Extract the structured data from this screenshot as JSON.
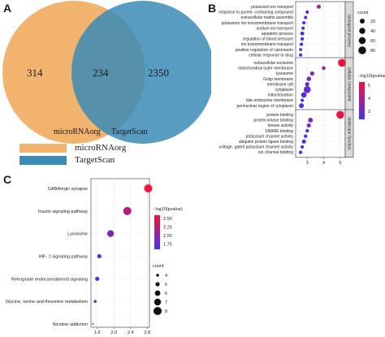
{
  "panels": {
    "a": "A",
    "b": "B",
    "c": "C"
  },
  "venn": {
    "left_only": "314",
    "overlap": "234",
    "right_only": "2350",
    "left_label": "microRNAorg",
    "right_label": "TargetScan",
    "colors": {
      "left": "#f2b36f",
      "right": "#3b8bb7"
    },
    "legend": [
      {
        "label": "microRNAorg",
        "color": "#f2b36f"
      },
      {
        "label": "TargetScan",
        "color": "#3b8bb7"
      }
    ]
  },
  "chart_data": [
    {
      "type": "scatter",
      "panel": "B",
      "xticks": [
        3,
        4,
        5
      ],
      "xlim": [
        2.3,
        5.3
      ],
      "color_legend_title": "- log10(pvalue)",
      "color_ticks": [
        "5",
        "4",
        "3"
      ],
      "size_legend_title": "count",
      "size_ticks": [
        "20",
        "40",
        "60",
        "80"
      ],
      "groups": [
        {
          "name": "biological process",
          "terms": [
            {
              "label": "potassium ion transport",
              "x": 3.7,
              "count": 10
            },
            {
              "label": "response to purine- containing compound",
              "x": 3.0,
              "count": 5
            },
            {
              "label": "extracellular matrix assembly",
              "x": 2.9,
              "count": 4
            },
            {
              "label": "potassium ion transmembrane transport",
              "x": 2.8,
              "count": 5
            },
            {
              "label": "sodium ion transport",
              "x": 2.75,
              "count": 5
            },
            {
              "label": "apoptotic process",
              "x": 2.7,
              "count": 10
            },
            {
              "label": "regulation of blood pressure",
              "x": 2.7,
              "count": 6
            },
            {
              "label": "ion transmembrane transport",
              "x": 2.65,
              "count": 6
            },
            {
              "label": "positive regulation of calcineurin",
              "x": 2.6,
              "count": 3
            },
            {
              "label": "cellular response to drug",
              "x": 2.6,
              "count": 5
            }
          ]
        },
        {
          "name": "cellular component",
          "terms": [
            {
              "label": "extracellular exosome",
              "x": 5.1,
              "count": 80
            },
            {
              "label": "mitochondrial outer membrane",
              "x": 4.0,
              "count": 8
            },
            {
              "label": "lysosome",
              "x": 3.3,
              "count": 12
            },
            {
              "label": "Golgi membrane",
              "x": 3.1,
              "count": 15
            },
            {
              "label": "membrane raft",
              "x": 3.0,
              "count": 12
            },
            {
              "label": "cytoplasm",
              "x": 3.0,
              "count": 60
            },
            {
              "label": "mitochondrion",
              "x": 2.8,
              "count": 30
            },
            {
              "label": "late endosome membrane",
              "x": 2.7,
              "count": 5
            },
            {
              "label": "perinuclear region of cytoplasm",
              "x": 2.65,
              "count": 20
            }
          ]
        },
        {
          "name": "molecular function",
          "terms": [
            {
              "label": "protein binding",
              "x": 5.0,
              "count": 80
            },
            {
              "label": "protein kinase binding",
              "x": 3.2,
              "count": 18
            },
            {
              "label": "kinase activity",
              "x": 3.1,
              "count": 10
            },
            {
              "label": "SNARE binding",
              "x": 3.0,
              "count": 6
            },
            {
              "label": "potassium channel activity",
              "x": 2.9,
              "count": 6
            },
            {
              "label": "ubiquitin protein ligase binding",
              "x": 2.8,
              "count": 12
            },
            {
              "label": "voltage- gated potassium channel activity",
              "x": 2.7,
              "count": 5
            },
            {
              "label": "ion channel binding",
              "x": 2.6,
              "count": 6
            }
          ]
        }
      ]
    },
    {
      "type": "scatter",
      "panel": "C",
      "xticks": [
        "1.6",
        "2.0",
        "2.4",
        "2.8"
      ],
      "xtick_values": [
        1.6,
        2.0,
        2.4,
        2.8
      ],
      "xlim": [
        1.45,
        2.85
      ],
      "color_legend_title": "- log10(pvalue)",
      "color_ticks": [
        "2.50",
        "2.25",
        "2.00",
        "1.75"
      ],
      "size_legend_title": "count",
      "size_ticks": [
        "4",
        "5",
        "6",
        "7",
        "8"
      ],
      "terms": [
        {
          "label": "GABAergic synapse",
          "x": 2.82,
          "count": 8
        },
        {
          "label": "Insulin signaling pathway",
          "x": 2.32,
          "count": 8
        },
        {
          "label": "Lysosome",
          "x": 1.92,
          "count": 7
        },
        {
          "label": "HIF- 1 signaling pathway",
          "x": 1.65,
          "count": 5
        },
        {
          "label": "Retrograde endocannabinoid signaling",
          "x": 1.6,
          "count": 5
        },
        {
          "label": "Glycine, serine and threonine metabolism",
          "x": 1.55,
          "count": 4
        },
        {
          "label": "Nicotine addiction",
          "x": 1.5,
          "count": 3
        }
      ]
    }
  ]
}
